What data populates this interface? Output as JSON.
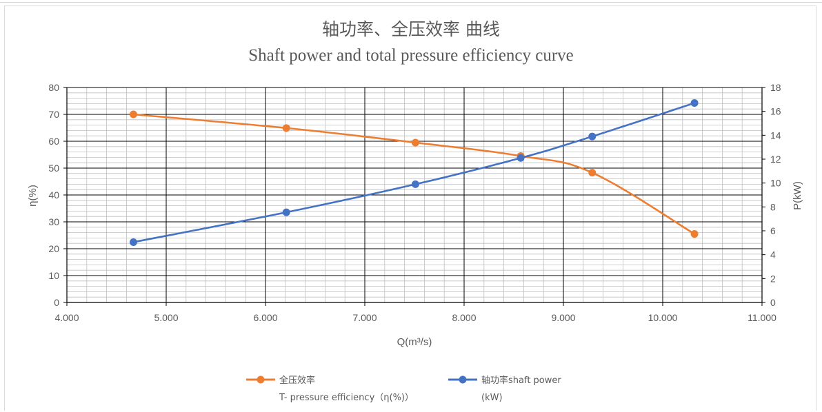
{
  "chart": {
    "title_cn": "轴功率、全压效率 曲线",
    "title_en": "Shaft power and total pressure efficiency curve",
    "xlabel": "Q(m³/s)",
    "ylabel_left": "η(%)",
    "ylabel_right": "P(kW)"
  },
  "legend": {
    "efficiency_line1": "全压效率",
    "efficiency_line2": "T- pressure efficiency（η(%)）",
    "power_line1": "轴功率shaft power",
    "power_line2": "(kW)"
  },
  "chart_data": {
    "type": "line",
    "x_ticks": [
      "4.000",
      "5.000",
      "6.000",
      "7.000",
      "8.000",
      "9.000",
      "10.000",
      "11.000"
    ],
    "y_left_ticks": [
      "0",
      "10",
      "20",
      "30",
      "40",
      "50",
      "60",
      "70",
      "80"
    ],
    "y_right_ticks": [
      "0",
      "2",
      "4",
      "6",
      "8",
      "10",
      "12",
      "14",
      "16",
      "18"
    ],
    "xlim": [
      4,
      11
    ],
    "ylim_left": [
      0,
      80
    ],
    "ylim_right": [
      0,
      18
    ],
    "grid": true,
    "legend_position": "bottom",
    "series": [
      {
        "name": "全压效率 T- pressure efficiency（η(%)）",
        "axis": "left",
        "color": "#ed7d31",
        "x": [
          4.67,
          6.21,
          7.51,
          8.57,
          9.29,
          10.32
        ],
        "y": [
          70.0,
          64.9,
          59.5,
          54.5,
          48.3,
          25.5
        ]
      },
      {
        "name": "轴功率shaft power (kW)",
        "axis": "right",
        "color": "#4472c4",
        "x": [
          4.67,
          6.21,
          7.51,
          8.57,
          9.29,
          10.32
        ],
        "y": [
          5.05,
          7.55,
          9.9,
          12.1,
          13.9,
          16.7
        ]
      }
    ]
  }
}
